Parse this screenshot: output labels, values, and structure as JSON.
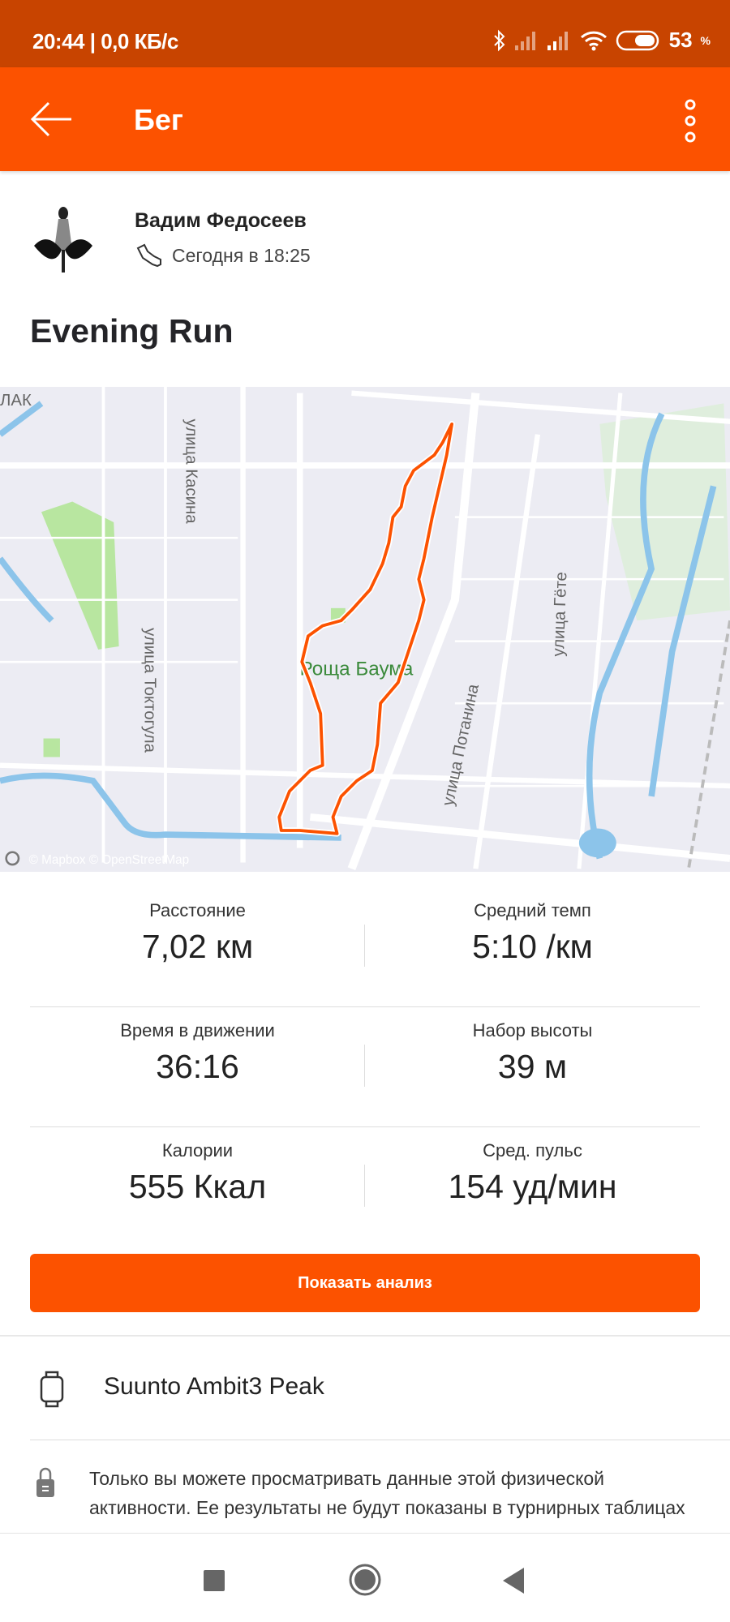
{
  "status_bar": {
    "time": "20:44 | 0,0 КБ/с",
    "battery": "53",
    "battery_unit": "%"
  },
  "app_bar": {
    "title": "Бег"
  },
  "athlete": {
    "name": "Вадим Федосеев",
    "date": "Сегодня в 18:25"
  },
  "activity": {
    "title": "Evening Run"
  },
  "map": {
    "labels": {
      "park": "Роща Баума",
      "street1": "улица Касина",
      "street2": "улица Токтогула",
      "street3": "улица Потанина",
      "street4": "улица Гёте",
      "corner": "ЛАК"
    },
    "attribution": "© Mapbox © OpenStreetMap",
    "route_color": "#fc5200"
  },
  "stats": [
    {
      "label": "Расстояние",
      "value": "7,02 км"
    },
    {
      "label": "Средний темп",
      "value": "5:10 /км"
    },
    {
      "label": "Время в движении",
      "value": "36:16"
    },
    {
      "label": "Набор высоты",
      "value": "39 м"
    },
    {
      "label": "Калории",
      "value": "555 Ккал"
    },
    {
      "label": "Сред. пульс",
      "value": "154 уд/мин"
    }
  ],
  "analysis_button": "Показать анализ",
  "device": {
    "name": "Suunto Ambit3 Peak"
  },
  "privacy": {
    "text": "Только вы можете просматривать данные этой физической активности. Ее результаты не будут показаны в турнирных таблицах участков и могут не учитываться в некоторых"
  },
  "colors": {
    "brand": "#fc5200",
    "status_bar": "#c84400"
  }
}
